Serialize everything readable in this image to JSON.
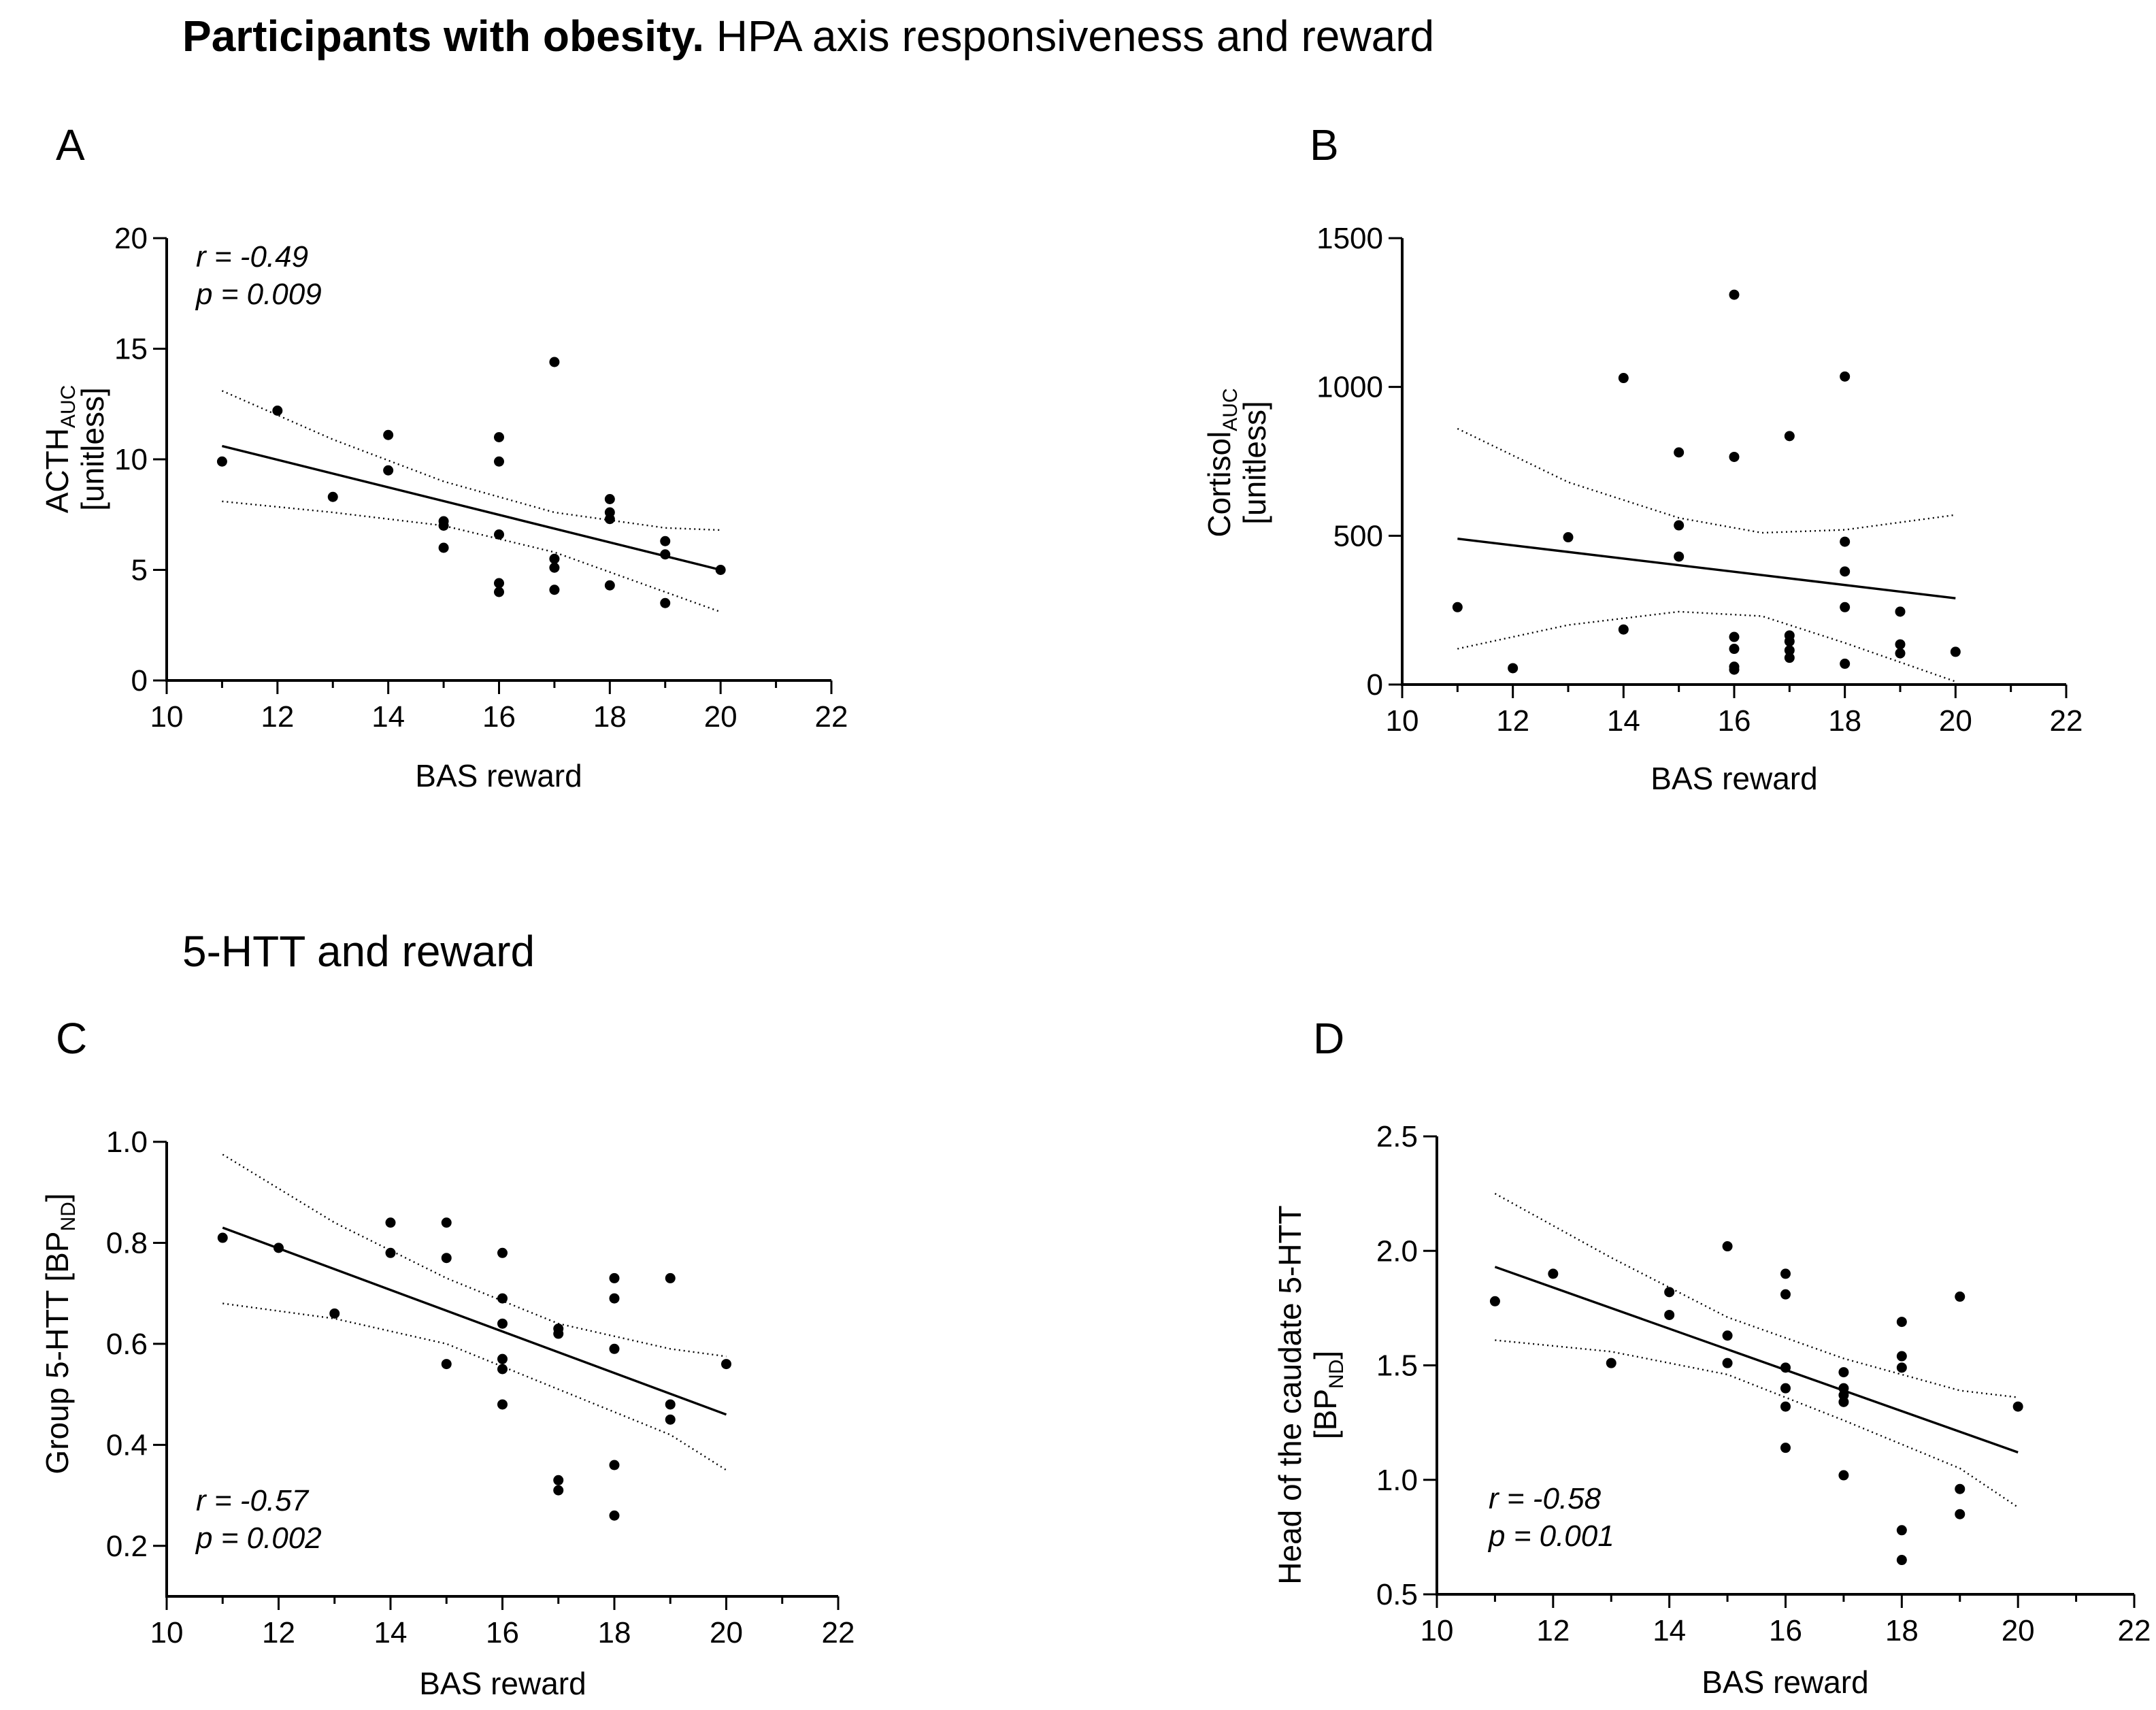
{
  "headings": {
    "main_bold": "Participants with obesity.",
    "main_rest": " HPA axis responsiveness and reward",
    "section2": "5-HTT and reward"
  },
  "chart_data": [
    {
      "panel": "A",
      "type": "scatter",
      "title": "",
      "xlabel": "BAS reward",
      "ylabel": {
        "line1": "ACTH",
        "line1_sub": "AUC",
        "line2": "[unitless]"
      },
      "xlim": [
        10,
        22
      ],
      "ylim": [
        0,
        20
      ],
      "xticks": [
        10,
        12,
        14,
        16,
        18,
        20,
        22
      ],
      "yticks": [
        0,
        5,
        10,
        15,
        20
      ],
      "yticklabels": [
        "0",
        "5",
        "10",
        "15",
        "20"
      ],
      "annotation": {
        "r": "r = -0.49",
        "p": "p = 0.009",
        "position": "top-left"
      },
      "points": [
        [
          11,
          9.9
        ],
        [
          12,
          12.2
        ],
        [
          13,
          8.3
        ],
        [
          14,
          11.1
        ],
        [
          14,
          9.5
        ],
        [
          15,
          7.2
        ],
        [
          15,
          7.0
        ],
        [
          15,
          6.0
        ],
        [
          16,
          11.0
        ],
        [
          16,
          9.9
        ],
        [
          16,
          6.6
        ],
        [
          16,
          4.4
        ],
        [
          16,
          4.0
        ],
        [
          17,
          14.4
        ],
        [
          17,
          5.5
        ],
        [
          17,
          5.1
        ],
        [
          17,
          4.1
        ],
        [
          18,
          8.2
        ],
        [
          18,
          7.6
        ],
        [
          18,
          7.3
        ],
        [
          18,
          4.3
        ],
        [
          19,
          6.3
        ],
        [
          19,
          5.7
        ],
        [
          19,
          3.5
        ],
        [
          20,
          5.0
        ]
      ],
      "fit": {
        "x": [
          11,
          20
        ],
        "y": [
          10.6,
          5.0
        ]
      },
      "ci_upper": {
        "x": [
          11,
          13,
          15,
          17,
          19,
          20
        ],
        "y": [
          13.1,
          10.9,
          9.0,
          7.6,
          6.9,
          6.8
        ]
      },
      "ci_lower": {
        "x": [
          11,
          13,
          15,
          17,
          19,
          20
        ],
        "y": [
          8.1,
          7.6,
          7.0,
          5.8,
          4.0,
          3.1
        ]
      }
    },
    {
      "panel": "B",
      "type": "scatter",
      "title": "",
      "xlabel": "BAS reward",
      "ylabel": {
        "line1": "Cortisol",
        "line1_sub": "AUC",
        "line2": "[unitless]"
      },
      "xlim": [
        10,
        22
      ],
      "ylim": [
        0,
        1500
      ],
      "xticks": [
        10,
        12,
        14,
        16,
        18,
        20,
        22
      ],
      "yticks": [
        0,
        500,
        1000,
        1500
      ],
      "yticklabels": [
        "0",
        "500",
        "1000",
        "1500"
      ],
      "annotation": null,
      "points": [
        [
          11,
          260
        ],
        [
          12,
          55
        ],
        [
          13,
          495
        ],
        [
          14,
          1030
        ],
        [
          14,
          185
        ],
        [
          15,
          780
        ],
        [
          15,
          535
        ],
        [
          15,
          430
        ],
        [
          16,
          1310
        ],
        [
          16,
          765
        ],
        [
          16,
          160
        ],
        [
          16,
          120
        ],
        [
          16,
          60
        ],
        [
          16,
          50
        ],
        [
          17,
          835
        ],
        [
          17,
          165
        ],
        [
          17,
          145
        ],
        [
          17,
          115
        ],
        [
          17,
          90
        ],
        [
          18,
          1035
        ],
        [
          18,
          480
        ],
        [
          18,
          380
        ],
        [
          18,
          260
        ],
        [
          18,
          70
        ],
        [
          19,
          245
        ],
        [
          19,
          135
        ],
        [
          19,
          105
        ],
        [
          20,
          110
        ]
      ],
      "fit": {
        "x": [
          11,
          20
        ],
        "y": [
          490,
          290
        ]
      },
      "ci_upper": {
        "x": [
          11,
          13,
          15,
          16.5,
          18,
          20
        ],
        "y": [
          860,
          680,
          560,
          510,
          520,
          570
        ]
      },
      "ci_lower": {
        "x": [
          11,
          13,
          15,
          16.5,
          18,
          20
        ],
        "y": [
          120,
          200,
          245,
          230,
          140,
          10
        ]
      }
    },
    {
      "panel": "C",
      "type": "scatter",
      "title": "",
      "xlabel": "BAS reward",
      "ylabel": {
        "line1": "Group 5-HTT [BP",
        "line1_sub": "ND",
        "line1_end": "]"
      },
      "xlim": [
        10,
        22
      ],
      "ylim": [
        0.1,
        1.0
      ],
      "xticks": [
        10,
        12,
        14,
        16,
        18,
        20,
        22
      ],
      "yticks": [
        0.2,
        0.4,
        0.6,
        0.8,
        1.0
      ],
      "yticklabels": [
        "0.2",
        "0.4",
        "0.6",
        "0.8",
        "1.0"
      ],
      "annotation": {
        "r": "r = -0.57",
        "p": "p = 0.002",
        "position": "bottom-left"
      },
      "points": [
        [
          11,
          0.81
        ],
        [
          12,
          0.79
        ],
        [
          13,
          0.66
        ],
        [
          14,
          0.84
        ],
        [
          14,
          0.78
        ],
        [
          15,
          0.84
        ],
        [
          15,
          0.77
        ],
        [
          15,
          0.56
        ],
        [
          16,
          0.78
        ],
        [
          16,
          0.69
        ],
        [
          16,
          0.64
        ],
        [
          16,
          0.57
        ],
        [
          16,
          0.55
        ],
        [
          16,
          0.48
        ],
        [
          17,
          0.63
        ],
        [
          17,
          0.62
        ],
        [
          17,
          0.33
        ],
        [
          17,
          0.31
        ],
        [
          18,
          0.73
        ],
        [
          18,
          0.69
        ],
        [
          18,
          0.59
        ],
        [
          18,
          0.36
        ],
        [
          18,
          0.26
        ],
        [
          19,
          0.73
        ],
        [
          19,
          0.48
        ],
        [
          19,
          0.45
        ],
        [
          20,
          0.56
        ]
      ],
      "fit": {
        "x": [
          11,
          20
        ],
        "y": [
          0.83,
          0.46
        ]
      },
      "ci_upper": {
        "x": [
          11,
          13,
          15,
          17,
          19,
          20
        ],
        "y": [
          0.975,
          0.84,
          0.73,
          0.64,
          0.59,
          0.575
        ]
      },
      "ci_lower": {
        "x": [
          11,
          13,
          15,
          17,
          19,
          20
        ],
        "y": [
          0.68,
          0.65,
          0.6,
          0.51,
          0.42,
          0.35
        ]
      }
    },
    {
      "panel": "D",
      "type": "scatter",
      "title": "",
      "xlabel": "BAS reward",
      "ylabel": {
        "line1": "Head of the caudate 5-HTT",
        "line2": "[BP",
        "line2_sub": "ND",
        "line2_end": "]"
      },
      "xlim": [
        10,
        22
      ],
      "ylim": [
        0.5,
        2.5
      ],
      "xticks": [
        10,
        12,
        14,
        16,
        18,
        20,
        22
      ],
      "yticks": [
        0.5,
        1.0,
        1.5,
        2.0,
        2.5
      ],
      "yticklabels": [
        "0.5",
        "1.0",
        "1.5",
        "2.0",
        "2.5"
      ],
      "annotation": {
        "r": "r = -0.58",
        "p": "p = 0.001",
        "position": "bottom-left"
      },
      "points": [
        [
          11,
          1.78
        ],
        [
          12,
          1.9
        ],
        [
          13,
          1.51
        ],
        [
          14,
          1.82
        ],
        [
          14,
          1.72
        ],
        [
          15,
          2.02
        ],
        [
          15,
          1.63
        ],
        [
          15,
          1.51
        ],
        [
          16,
          1.9
        ],
        [
          16,
          1.81
        ],
        [
          16,
          1.49
        ],
        [
          16,
          1.4
        ],
        [
          16,
          1.32
        ],
        [
          16,
          1.14
        ],
        [
          17,
          1.47
        ],
        [
          17,
          1.4
        ],
        [
          17,
          1.37
        ],
        [
          17,
          1.34
        ],
        [
          17,
          1.02
        ],
        [
          18,
          1.69
        ],
        [
          18,
          1.54
        ],
        [
          18,
          1.49
        ],
        [
          18,
          0.78
        ],
        [
          18,
          0.65
        ],
        [
          19,
          1.8
        ],
        [
          19,
          0.96
        ],
        [
          19,
          0.85
        ],
        [
          20,
          1.32
        ]
      ],
      "fit": {
        "x": [
          11,
          20
        ],
        "y": [
          1.93,
          1.12
        ]
      },
      "ci_upper": {
        "x": [
          11,
          13,
          15,
          17,
          19,
          20
        ],
        "y": [
          2.25,
          1.97,
          1.71,
          1.53,
          1.39,
          1.36
        ]
      },
      "ci_lower": {
        "x": [
          11,
          13,
          15,
          17,
          19,
          20
        ],
        "y": [
          1.61,
          1.56,
          1.46,
          1.26,
          1.05,
          0.88
        ]
      }
    }
  ]
}
